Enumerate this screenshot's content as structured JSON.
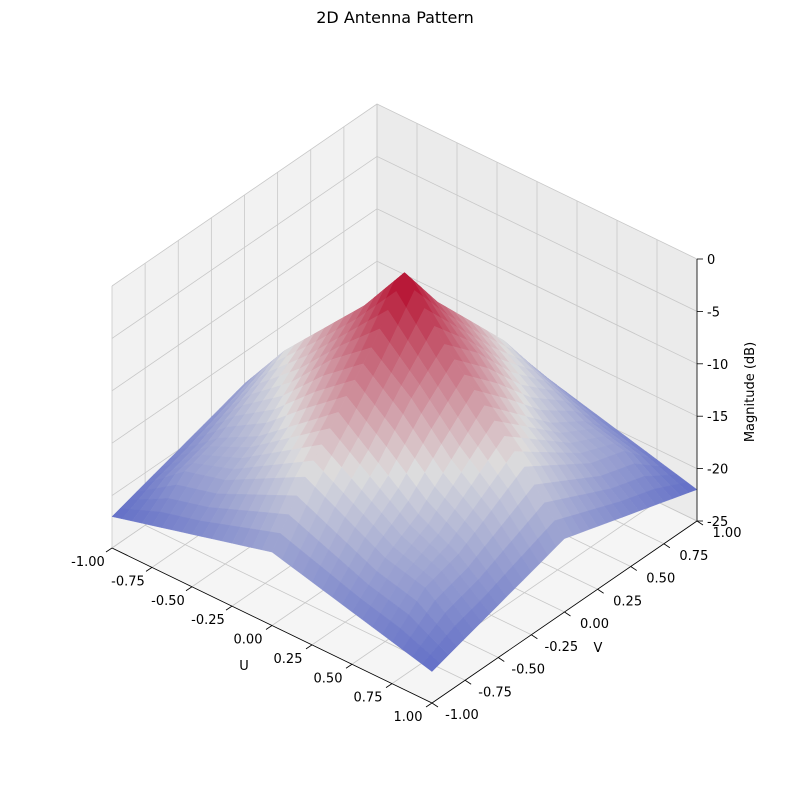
{
  "chart_data": {
    "type": "surface3d",
    "title": "2D Antenna Pattern",
    "xlabel": "U",
    "ylabel": "V",
    "zlabel": "Magnitude (dB)",
    "xlim": [
      -1.0,
      1.0
    ],
    "ylim": [
      -1.0,
      1.0
    ],
    "zlim": [
      -25,
      0
    ],
    "x_ticks": [
      "-1.00",
      "-0.75",
      "-0.50",
      "-0.25",
      "0.00",
      "0.25",
      "0.50",
      "0.75",
      "1.00"
    ],
    "y_ticks": [
      "-1.00",
      "-0.75",
      "-0.50",
      "-0.25",
      "0.00",
      "0.25",
      "0.50",
      "0.75",
      "1.00"
    ],
    "z_ticks": [
      "-25",
      "-20",
      "-15",
      "-10",
      "-5",
      "0"
    ],
    "colormap": "coolwarm",
    "colors": {
      "low": "#3b4cc0",
      "mid": "#dddddd",
      "high": "#b40426",
      "pane_left": "#f2f2f2",
      "pane_right": "#ebebeb",
      "pane_floor": "#f5f5f5",
      "grid": "#c8c8c8"
    },
    "grid": true,
    "peak": {
      "u": 0.0,
      "v": 0.0,
      "magnitude_db": 0.0
    },
    "floor_db": -25,
    "surface_values": "V(u,v) rendered from the grid below, in dB",
    "grid_u": [
      -1.0,
      -0.75,
      -0.5,
      -0.25,
      0.0,
      0.25,
      0.5,
      0.75,
      1.0
    ],
    "grid_v": [
      -1.0,
      -0.75,
      -0.5,
      -0.25,
      0.0,
      0.25,
      0.5,
      0.75,
      1.0
    ],
    "magnitude_db_grid": [
      [
        -22,
        -21,
        -20,
        -19,
        -18,
        -19,
        -20,
        -21,
        -22
      ],
      [
        -21,
        -18,
        -17,
        -15,
        -13,
        -15,
        -17,
        -18,
        -21
      ],
      [
        -20,
        -17,
        -15,
        -12,
        -9,
        -12,
        -15,
        -17,
        -20
      ],
      [
        -19,
        -15,
        -12,
        -8,
        -5,
        -8,
        -12,
        -15,
        -19
      ],
      [
        -18,
        -13,
        -9,
        -5,
        0,
        -5,
        -9,
        -13,
        -18
      ],
      [
        -19,
        -15,
        -12,
        -8,
        -5,
        -8,
        -12,
        -15,
        -19
      ],
      [
        -20,
        -17,
        -15,
        -12,
        -9,
        -12,
        -15,
        -17,
        -20
      ],
      [
        -21,
        -18,
        -17,
        -15,
        -13,
        -15,
        -17,
        -18,
        -21
      ],
      [
        -22,
        -21,
        -20,
        -19,
        -18,
        -19,
        -20,
        -21,
        -22
      ]
    ]
  }
}
